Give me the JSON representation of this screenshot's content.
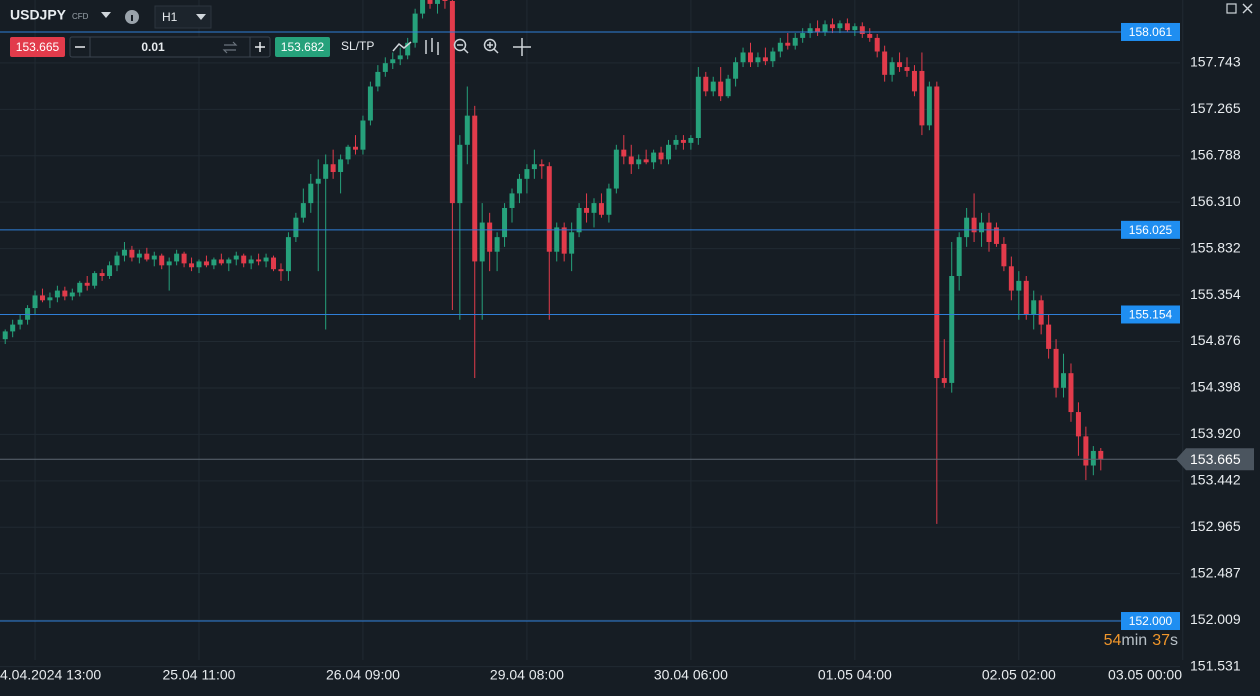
{
  "toolbar": {
    "symbol": "USDJPY",
    "symbol_tag": "CFD",
    "timeframe": "H1",
    "sell_price": "153.665",
    "volume": "0.01",
    "buy_price": "153.682",
    "sltp": "SL/TP"
  },
  "countdown": [
    "54",
    "min",
    "37",
    "s"
  ],
  "chart_data": {
    "type": "candlestick",
    "up_color": "#26a17b",
    "down_color": "#e23b4b",
    "grid": true,
    "ylim": [
      151.393,
      158.39
    ],
    "yticks": [
      157.743,
      157.265,
      156.788,
      {
        "value": 156.31,
        "label": "156.310"
      },
      155.832,
      155.354,
      154.876,
      154.398,
      {
        "value": 153.92,
        "label": "153.920"
      },
      153.442,
      152.965,
      152.487,
      152.009,
      151.531
    ],
    "xlim": [
      -0.7,
      158.3
    ],
    "xticks": [
      {
        "value": 4,
        "label": "4.04.2024 13:00"
      },
      {
        "value": 26,
        "label": "25.04 11:00"
      },
      {
        "value": 48,
        "label": "26.04 09:00"
      },
      {
        "value": 70,
        "label": "29.04 08:00"
      },
      {
        "value": 92,
        "label": "30.04 06:00"
      },
      {
        "value": 114,
        "label": "01.05 04:00"
      },
      {
        "value": 136,
        "label": "02.05 02:00"
      },
      {
        "value": 158,
        "label": "03.05 00:00"
      }
    ],
    "levels": [
      158.061,
      156.025,
      155.154,
      {
        "value": 152,
        "label": "152.000"
      }
    ],
    "current_price": 153.665,
    "ohlc": [
      [
        154.9,
        155.0,
        154.85,
        154.98
      ],
      [
        154.98,
        155.1,
        154.92,
        155.05
      ],
      [
        155.05,
        155.15,
        155.0,
        155.1
      ],
      [
        155.1,
        155.25,
        155.05,
        155.22
      ],
      [
        155.22,
        155.4,
        155.15,
        155.35
      ],
      [
        155.35,
        155.42,
        155.28,
        155.3
      ],
      [
        155.3,
        155.38,
        155.22,
        155.33
      ],
      [
        155.33,
        155.45,
        155.28,
        155.4
      ],
      [
        155.4,
        155.44,
        155.3,
        155.34
      ],
      [
        155.34,
        155.42,
        155.3,
        155.38
      ],
      [
        155.38,
        155.5,
        155.34,
        155.48
      ],
      [
        155.48,
        155.55,
        155.4,
        155.45
      ],
      [
        155.45,
        155.6,
        155.42,
        155.58
      ],
      [
        155.58,
        155.62,
        155.5,
        155.55
      ],
      [
        155.55,
        155.7,
        155.52,
        155.66
      ],
      [
        155.66,
        155.8,
        155.6,
        155.76
      ],
      [
        155.76,
        155.9,
        155.7,
        155.82
      ],
      [
        155.82,
        155.86,
        155.7,
        155.74
      ],
      [
        155.74,
        155.82,
        155.68,
        155.78
      ],
      [
        155.78,
        155.84,
        155.7,
        155.72
      ],
      [
        155.72,
        155.8,
        155.65,
        155.76
      ],
      [
        155.76,
        155.78,
        155.62,
        155.66
      ],
      [
        155.66,
        155.74,
        155.4,
        155.7
      ],
      [
        155.7,
        155.82,
        155.66,
        155.78
      ],
      [
        155.78,
        155.8,
        155.64,
        155.68
      ],
      [
        155.68,
        155.74,
        155.6,
        155.64
      ],
      [
        155.64,
        155.72,
        155.58,
        155.7
      ],
      [
        155.7,
        155.76,
        155.64,
        155.66
      ],
      [
        155.66,
        155.74,
        155.62,
        155.72
      ],
      [
        155.72,
        155.78,
        155.66,
        155.68
      ],
      [
        155.68,
        155.74,
        155.6,
        155.72
      ],
      [
        155.72,
        155.8,
        155.66,
        155.76
      ],
      [
        155.76,
        155.78,
        155.64,
        155.68
      ],
      [
        155.68,
        155.76,
        155.62,
        155.72
      ],
      [
        155.72,
        155.78,
        155.66,
        155.7
      ],
      [
        155.7,
        155.78,
        155.64,
        155.74
      ],
      [
        155.74,
        155.76,
        155.6,
        155.62
      ],
      [
        155.62,
        155.68,
        155.5,
        155.6
      ],
      [
        155.6,
        156.0,
        155.5,
        155.95
      ],
      [
        155.95,
        156.2,
        155.9,
        156.15
      ],
      [
        156.15,
        156.45,
        156.1,
        156.3
      ],
      [
        156.3,
        156.6,
        156.2,
        156.5
      ],
      [
        156.5,
        156.75,
        155.6,
        156.55
      ],
      [
        156.55,
        156.8,
        155.0,
        156.7
      ],
      [
        156.7,
        156.85,
        156.55,
        156.62
      ],
      [
        156.62,
        156.8,
        156.4,
        156.75
      ],
      [
        156.75,
        156.9,
        156.7,
        156.88
      ],
      [
        156.88,
        157.0,
        156.8,
        156.85
      ],
      [
        156.85,
        157.2,
        156.8,
        157.15
      ],
      [
        157.15,
        157.55,
        157.1,
        157.5
      ],
      [
        157.5,
        157.72,
        157.45,
        157.65
      ],
      [
        157.65,
        157.8,
        157.6,
        157.74
      ],
      [
        157.74,
        157.85,
        157.68,
        157.78
      ],
      [
        157.78,
        157.9,
        157.72,
        157.82
      ],
      [
        157.82,
        158.0,
        157.78,
        157.95
      ],
      [
        157.95,
        158.3,
        157.9,
        158.25
      ],
      [
        158.25,
        158.45,
        158.2,
        158.4
      ],
      [
        158.4,
        158.5,
        158.3,
        158.35
      ],
      [
        158.35,
        158.45,
        158.25,
        158.42
      ],
      [
        158.42,
        158.5,
        158.3,
        158.38
      ],
      [
        158.38,
        158.45,
        155.2,
        156.3
      ],
      [
        156.3,
        157.0,
        155.1,
        156.9
      ],
      [
        156.9,
        157.5,
        156.7,
        157.2
      ],
      [
        157.2,
        157.3,
        154.5,
        155.7
      ],
      [
        155.7,
        156.3,
        155.1,
        156.1
      ],
      [
        156.1,
        156.2,
        155.6,
        155.8
      ],
      [
        155.8,
        156.0,
        155.6,
        155.95
      ],
      [
        155.95,
        156.3,
        155.85,
        156.25
      ],
      [
        156.25,
        156.45,
        156.1,
        156.4
      ],
      [
        156.4,
        156.6,
        156.3,
        156.55
      ],
      [
        156.55,
        156.7,
        156.4,
        156.65
      ],
      [
        156.65,
        156.85,
        156.55,
        156.7
      ],
      [
        156.7,
        156.75,
        156.55,
        156.68
      ],
      [
        156.68,
        156.72,
        155.1,
        155.8
      ],
      [
        155.8,
        156.1,
        155.7,
        156.05
      ],
      [
        156.05,
        156.1,
        155.7,
        155.78
      ],
      [
        155.78,
        156.1,
        155.6,
        156.0
      ],
      [
        156.0,
        156.3,
        155.95,
        156.25
      ],
      [
        156.25,
        156.4,
        156.1,
        156.2
      ],
      [
        156.2,
        156.35,
        156.05,
        156.3
      ],
      [
        156.3,
        156.4,
        156.15,
        156.18
      ],
      [
        156.18,
        156.5,
        156.1,
        156.45
      ],
      [
        156.45,
        156.9,
        156.4,
        156.85
      ],
      [
        156.85,
        157.0,
        156.7,
        156.78
      ],
      [
        156.78,
        156.9,
        156.6,
        156.7
      ],
      [
        156.7,
        156.8,
        156.65,
        156.75
      ],
      [
        156.75,
        156.85,
        156.7,
        156.72
      ],
      [
        156.72,
        156.85,
        156.65,
        156.82
      ],
      [
        156.82,
        156.88,
        156.7,
        156.75
      ],
      [
        156.75,
        156.95,
        156.7,
        156.9
      ],
      [
        156.9,
        157.0,
        156.85,
        156.95
      ],
      [
        156.95,
        157.0,
        156.85,
        156.92
      ],
      [
        156.92,
        157.0,
        156.85,
        156.97
      ],
      [
        156.97,
        157.7,
        156.9,
        157.6
      ],
      [
        157.6,
        157.65,
        157.4,
        157.45
      ],
      [
        157.45,
        157.6,
        157.4,
        157.55
      ],
      [
        157.55,
        157.7,
        157.35,
        157.4
      ],
      [
        157.4,
        157.62,
        157.38,
        157.58
      ],
      [
        157.58,
        157.8,
        157.5,
        157.75
      ],
      [
        157.75,
        157.9,
        157.7,
        157.85
      ],
      [
        157.85,
        157.95,
        157.7,
        157.75
      ],
      [
        157.75,
        157.85,
        157.7,
        157.8
      ],
      [
        157.8,
        157.9,
        157.72,
        157.76
      ],
      [
        157.76,
        157.9,
        157.7,
        157.86
      ],
      [
        157.86,
        158.0,
        157.8,
        157.95
      ],
      [
        157.95,
        158.05,
        157.88,
        157.92
      ],
      [
        157.92,
        158.05,
        157.88,
        158.0
      ],
      [
        158.0,
        158.1,
        157.95,
        158.05
      ],
      [
        158.05,
        158.15,
        158.0,
        158.1
      ],
      [
        158.1,
        158.18,
        158.02,
        158.06
      ],
      [
        158.06,
        158.18,
        158.02,
        158.14
      ],
      [
        158.14,
        158.2,
        158.05,
        158.1
      ],
      [
        158.1,
        158.18,
        158.05,
        158.15
      ],
      [
        158.15,
        158.2,
        158.06,
        158.08
      ],
      [
        158.08,
        158.15,
        158.02,
        158.12
      ],
      [
        158.12,
        158.16,
        158.0,
        158.04
      ],
      [
        158.04,
        158.1,
        157.96,
        158.0
      ],
      [
        158.0,
        158.04,
        157.8,
        157.86
      ],
      [
        157.86,
        157.92,
        157.55,
        157.62
      ],
      [
        157.62,
        157.8,
        157.55,
        157.75
      ],
      [
        157.75,
        157.85,
        157.65,
        157.7
      ],
      [
        157.7,
        157.8,
        157.6,
        157.66
      ],
      [
        157.66,
        157.72,
        157.4,
        157.45
      ],
      [
        157.66,
        157.85,
        157.0,
        157.1
      ],
      [
        157.1,
        157.55,
        157.05,
        157.5
      ],
      [
        157.5,
        157.55,
        153.0,
        154.5
      ],
      [
        154.5,
        154.9,
        154.4,
        154.45
      ],
      [
        154.45,
        155.9,
        154.35,
        155.55
      ],
      [
        155.55,
        156.0,
        155.4,
        155.95
      ],
      [
        155.95,
        156.25,
        155.85,
        156.15
      ],
      [
        156.15,
        156.4,
        155.9,
        156.0
      ],
      [
        156.0,
        156.2,
        155.85,
        156.1
      ],
      [
        156.1,
        156.2,
        155.8,
        155.9
      ],
      [
        156.05,
        156.1,
        155.85,
        155.88
      ],
      [
        155.88,
        155.95,
        155.6,
        155.65
      ],
      [
        155.65,
        155.75,
        155.3,
        155.4
      ],
      [
        155.4,
        155.6,
        155.1,
        155.5
      ],
      [
        155.5,
        155.55,
        155.1,
        155.15
      ],
      [
        155.15,
        155.4,
        155.0,
        155.3
      ],
      [
        155.3,
        155.35,
        154.95,
        155.05
      ],
      [
        155.05,
        155.15,
        154.7,
        154.8
      ],
      [
        154.8,
        154.9,
        154.3,
        154.4
      ],
      [
        154.4,
        154.75,
        154.3,
        154.55
      ],
      [
        154.55,
        154.65,
        154.05,
        154.15
      ],
      [
        154.15,
        154.25,
        153.7,
        153.9
      ],
      [
        153.9,
        154.0,
        153.45,
        153.6
      ],
      [
        153.6,
        153.8,
        153.5,
        153.75
      ],
      [
        153.75,
        153.78,
        153.55,
        153.66
      ]
    ]
  }
}
